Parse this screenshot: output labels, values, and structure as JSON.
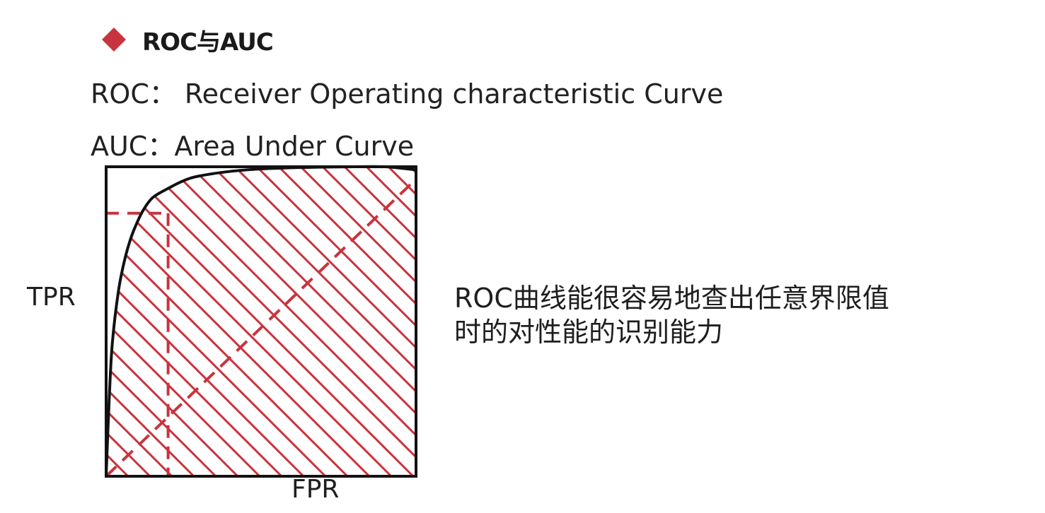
{
  "heading": {
    "text": "ROC与AUC",
    "bullet_color": "#c9333d"
  },
  "definitions": {
    "roc": "ROC： Receiver Operating characteristic Curve",
    "auc": "AUC：Area Under Curve"
  },
  "chart_data": {
    "type": "line",
    "title": "",
    "xlabel": "FPR",
    "ylabel": "TPR",
    "xlim": [
      0,
      1
    ],
    "ylim": [
      0,
      1
    ],
    "grid": false,
    "series": [
      {
        "x": [
          0,
          0.01,
          0.02,
          0.04,
          0.06,
          0.08,
          0.1,
          0.12,
          0.15,
          0.2,
          0.25,
          0.3,
          0.4,
          0.5,
          0.6,
          0.7,
          0.8,
          0.9,
          1.0
        ],
        "y": [
          0,
          0.25,
          0.43,
          0.6,
          0.7,
          0.77,
          0.82,
          0.86,
          0.9,
          0.93,
          0.955,
          0.97,
          0.985,
          0.993,
          0.997,
          0.999,
          1.0,
          1.0,
          0.99
        ],
        "color": "#111111",
        "style": "solid"
      },
      {
        "x": [
          0,
          1
        ],
        "y": [
          0,
          0.96
        ],
        "color": "#c9333d",
        "style": "dashed"
      }
    ],
    "annotations": [
      {
        "type": "dashed-guide",
        "x": 0.2,
        "y": 0.85,
        "color": "#c9333d"
      }
    ],
    "shaded_area": {
      "pattern": "diagonal-hatch",
      "color": "#c9333d",
      "under_series": 0
    }
  },
  "description": {
    "line1": "ROC曲线能很容易地查出任意界限值",
    "line2": "时的对性能的识别能力"
  }
}
